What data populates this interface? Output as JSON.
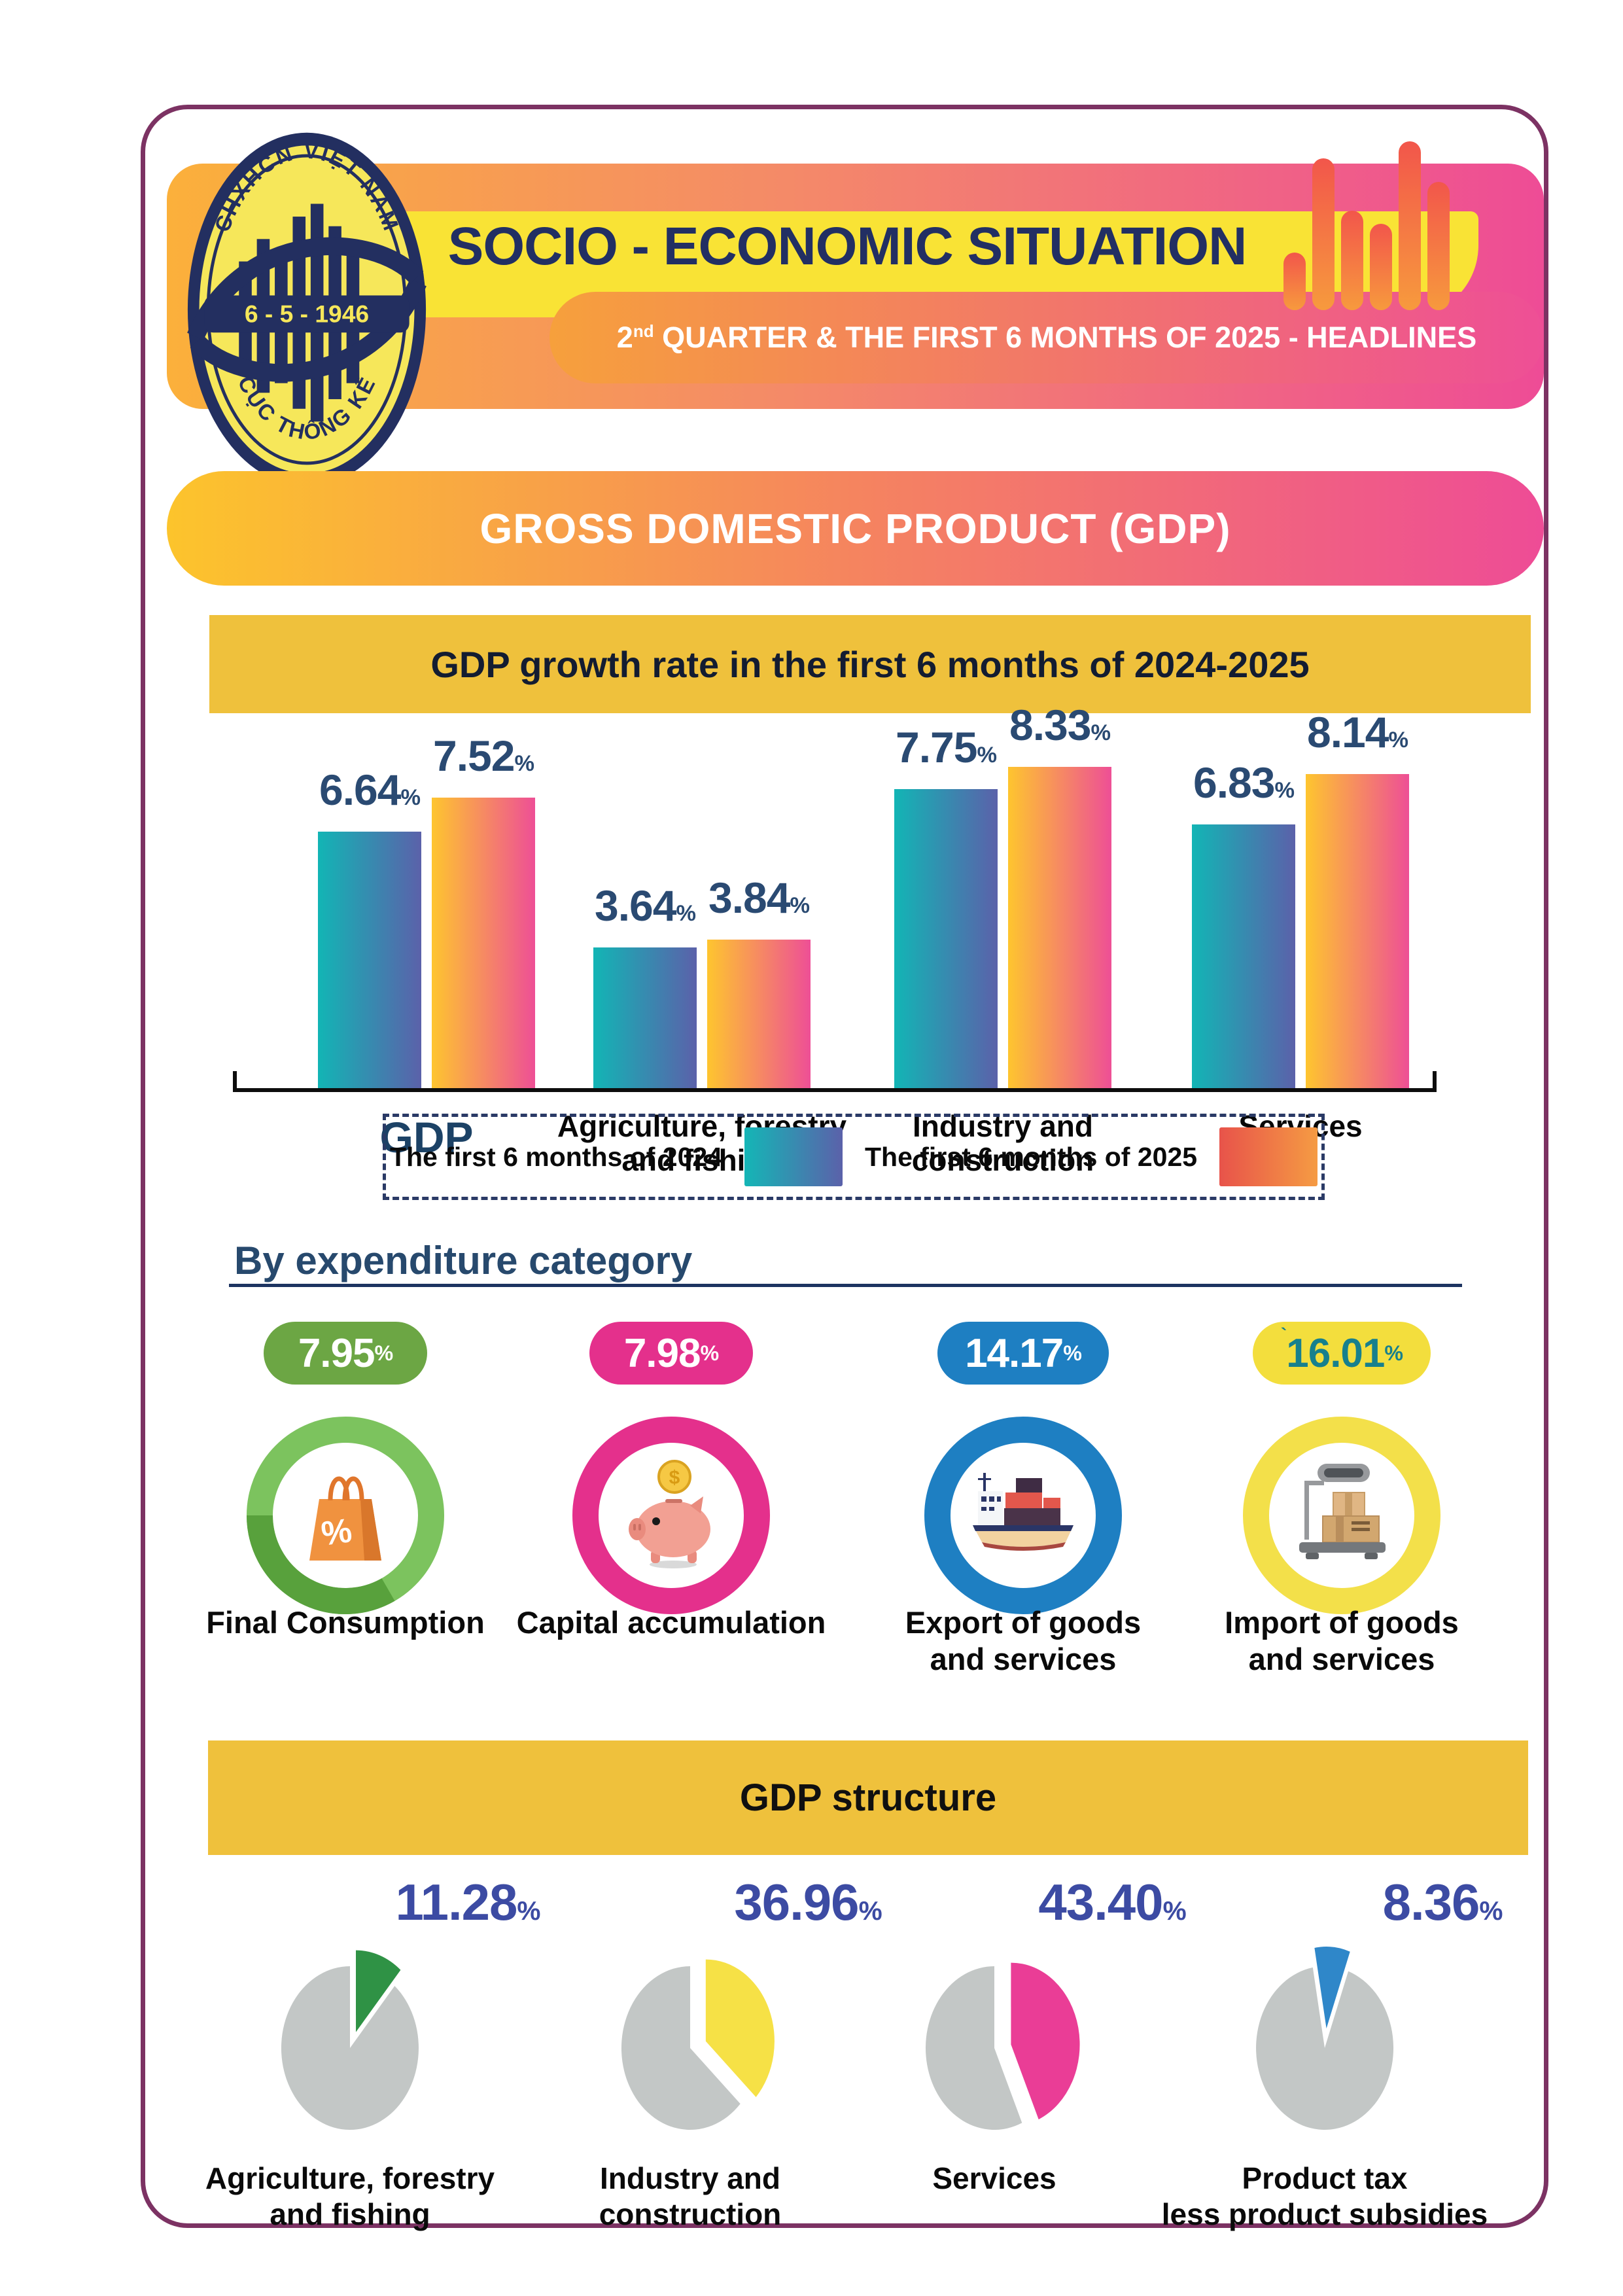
{
  "colors": {
    "frame": "#7c3263",
    "navy": "#232f60",
    "header_gradient": [
      "#fbb03b",
      "#ee4c96"
    ],
    "yellow_banner": "#f9e335",
    "gold_bar": "#efc13c",
    "pie_rest": "#c3c7c6",
    "pie_value_text": "#3c4ba3"
  },
  "header": {
    "title": "SOCIO - ECONOMIC SITUATION",
    "subtitle": {
      "prefix": "2",
      "sup": "nd",
      "rest": " QUARTER & THE FIRST 6 MONTHS OF 2025 - HEADLINES"
    },
    "logo": {
      "top_text": "CHXHCN VIỆT NAM",
      "center_text": "6 - 5 - 1946",
      "bottom_text": "CỤC THỐNG KÊ"
    }
  },
  "gdp_section": {
    "banner": "GROSS DOMESTIC PRODUCT (GDP)"
  },
  "chart_data": [
    {
      "type": "bar",
      "title": "GDP growth rate in the first 6 months of 2024-2025",
      "unit": "%",
      "categories": [
        "GDP",
        "Agriculture, forestry and fishing",
        "Industry and construction",
        "Services"
      ],
      "categories_lines": [
        [
          "GDP"
        ],
        [
          "Agriculture, forestry",
          "and fishing"
        ],
        [
          "Industry and",
          "construction"
        ],
        [
          "Services"
        ]
      ],
      "series": [
        {
          "name": "The first 6 months of 2024",
          "values": [
            6.64,
            3.64,
            7.75,
            6.83
          ],
          "bar_gradient": [
            "#12b5b5",
            "#5b61aa"
          ],
          "swatch_gradient": [
            "#14b6b6",
            "#5b61aa"
          ]
        },
        {
          "name": "The first 6 months of 2025",
          "values": [
            7.52,
            3.84,
            8.33,
            8.14
          ],
          "bar_gradient": [
            "#fec52f",
            "#ee4f96"
          ],
          "swatch_gradient": [
            "#e8534a",
            "#f59b43"
          ]
        }
      ],
      "ylim": [
        0,
        8.33
      ],
      "legend_position": "bottom",
      "value_labels": true,
      "grid": false
    },
    {
      "type": "pie",
      "title": "GDP structure",
      "unit": "%",
      "rest_color": "#c3c7c6",
      "value_color": "#3c4ba3",
      "items": [
        {
          "label": "Agriculture, forestry and fishing",
          "label_lines": [
            "Agriculture, forestry",
            "and fishing"
          ],
          "value": 11.28,
          "display": "11.28",
          "color": "#2f9245"
        },
        {
          "label": "Industry and construction",
          "label_lines": [
            "Industry and",
            "construction"
          ],
          "value": 36.96,
          "display": "36.96",
          "color": "#f6e146"
        },
        {
          "label": "Services",
          "label_lines": [
            "Services"
          ],
          "value": 43.4,
          "display": "43.40",
          "color": "#ea3d96"
        },
        {
          "label": "Product tax less product subsidies",
          "label_lines": [
            "Product tax",
            "less product subsidies"
          ],
          "value": 8.36,
          "display": "8.36",
          "color": "#2f87c9"
        }
      ]
    }
  ],
  "expenditure": {
    "heading": "By expenditure category",
    "unit": "%",
    "items": [
      {
        "label": "Final Consumption",
        "label_lines": [
          "Final Consumption"
        ],
        "value": "7.95",
        "badge_color": "#6ca644",
        "value_color": "#ffffff",
        "ring_color": "#7cc35e",
        "ring_arc_color": "#58a13c",
        "icon": "shopping-bag-icon"
      },
      {
        "label": "Capital accumulation",
        "label_lines": [
          "Capital accumulation"
        ],
        "value": "7.98",
        "badge_color": "#e4308c",
        "value_color": "#ffffff",
        "ring_color": "#e4308c",
        "icon": "piggy-bank-icon"
      },
      {
        "label": "Export of goods and services",
        "label_lines": [
          "Export of goods",
          "and services"
        ],
        "value": "14.17",
        "badge_color": "#1e7fc2",
        "value_color": "#ffffff",
        "ring_color": "#1e7fc2",
        "icon": "cargo-ship-icon"
      },
      {
        "label": "Import of goods and services",
        "label_lines": [
          "Import of goods",
          "and services"
        ],
        "value": "16.01",
        "value_prefix": "`",
        "badge_color": "#f3de3d",
        "value_color": "#17808d",
        "ring_color": "#f3e04a",
        "icon": "weighing-scale-icon"
      }
    ]
  }
}
